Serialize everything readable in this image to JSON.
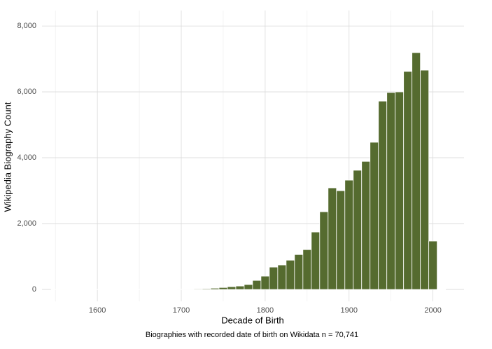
{
  "chart_data": {
    "type": "bar",
    "x_label": "Decade of Birth",
    "y_label": "Wikipedia Biography Count",
    "caption": "Biographies with recorded date of birth on Wikidata n = 70,741",
    "x": [
      1550,
      1560,
      1570,
      1580,
      1590,
      1600,
      1610,
      1620,
      1630,
      1640,
      1650,
      1660,
      1670,
      1680,
      1690,
      1700,
      1710,
      1720,
      1730,
      1740,
      1750,
      1760,
      1770,
      1780,
      1790,
      1800,
      1810,
      1820,
      1830,
      1840,
      1850,
      1860,
      1870,
      1880,
      1890,
      1900,
      1910,
      1920,
      1930,
      1940,
      1950,
      1960,
      1970,
      1980,
      1990,
      2000,
      2010
    ],
    "values": [
      3,
      3,
      4,
      4,
      4,
      5,
      5,
      5,
      6,
      6,
      6,
      7,
      7,
      8,
      9,
      12,
      15,
      20,
      25,
      40,
      60,
      85,
      105,
      150,
      275,
      405,
      680,
      745,
      890,
      1060,
      1210,
      1745,
      2360,
      3085,
      3000,
      3320,
      3620,
      3890,
      4470,
      5720,
      5980,
      6000,
      6620,
      7190,
      6660,
      1470,
      10
    ],
    "bar_width": 10,
    "color": "#556b2f",
    "xlim": [
      1534,
      2037
    ],
    "ylim": [
      -360,
      8470
    ],
    "xticks": [
      1600,
      1700,
      1800,
      1900,
      2000
    ],
    "x_minor_grid": [
      1550,
      1650,
      1750,
      1850,
      1950
    ],
    "yticks": [
      0,
      {
        "value": 2000,
        "label": "2,000"
      },
      {
        "value": 4000,
        "label": "4,000"
      },
      {
        "value": 6000,
        "label": "6,000"
      },
      {
        "value": 8000,
        "label": "8,000"
      }
    ],
    "grid": true
  }
}
